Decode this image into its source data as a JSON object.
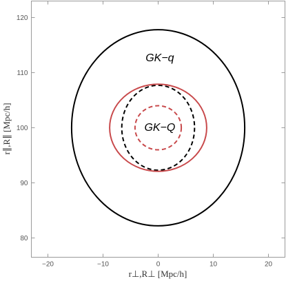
{
  "chart_data": {
    "type": "line",
    "title": "",
    "xlabel": "r⊥,R⊥  [Mpc/h]",
    "ylabel": "r∥,R∥  [Mpc/h]",
    "xlim": [
      -23,
      23
    ],
    "ylim": [
      76.5,
      123
    ],
    "xticks": [
      -20,
      -10,
      0,
      10,
      20
    ],
    "yticks": [
      80,
      90,
      100,
      110,
      120
    ],
    "xtick_labels": [
      "−20",
      "−10",
      "0",
      "10",
      "20"
    ],
    "ytick_labels": [
      "80",
      "90",
      "100",
      "110",
      "120"
    ],
    "grid": false,
    "series": [
      {
        "kind": "ellipse",
        "cx": 0,
        "cy": 100,
        "rx": 15.7,
        "ry": 17.8,
        "color": "#000000",
        "dash": "solid"
      },
      {
        "kind": "ellipse",
        "cx": 0,
        "cy": 100,
        "rx": 6.6,
        "ry": 7.7,
        "color": "#000000",
        "dash": "dashed"
      },
      {
        "kind": "ellipse",
        "cx": 0,
        "cy": 100,
        "rx": 8.8,
        "ry": 7.9,
        "color": "#c8494b",
        "dash": "solid"
      },
      {
        "kind": "ellipse",
        "cx": 0,
        "cy": 100,
        "rx": 4.2,
        "ry": 4.0,
        "color": "#c8494b",
        "dash": "dashed"
      }
    ],
    "annotations": [
      {
        "text": "GK−q",
        "x": 0.3,
        "y": 112.8
      },
      {
        "text": "GK−Q",
        "x": 0.3,
        "y": 100.2
      }
    ]
  }
}
